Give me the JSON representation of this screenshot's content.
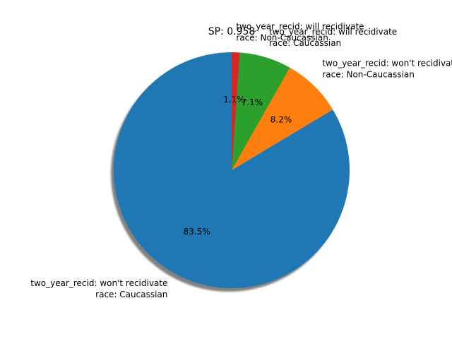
{
  "chart_data": {
    "type": "pie",
    "title": "SP: 0.958",
    "start_angle_deg": 90,
    "counterclockwise": true,
    "shadow": true,
    "categories": [
      [
        "two_year_recid: won't recidivate",
        "race: Caucassian"
      ],
      [
        "two_year_recid: won't recidivate",
        "race: Non-Caucassian"
      ],
      [
        "two_year_recid: will recidivate",
        "race: Caucassian"
      ],
      [
        "two_year_recid: will recidivate",
        "race: Non-Caucassian"
      ]
    ],
    "values": [
      83.5,
      8.2,
      7.1,
      1.1
    ],
    "value_labels": [
      "83.5%",
      "8.2%",
      "7.1%",
      "1.1%"
    ],
    "colors": [
      "#1f77b4",
      "#ff7f0e",
      "#2ca02c",
      "#d62728"
    ]
  }
}
